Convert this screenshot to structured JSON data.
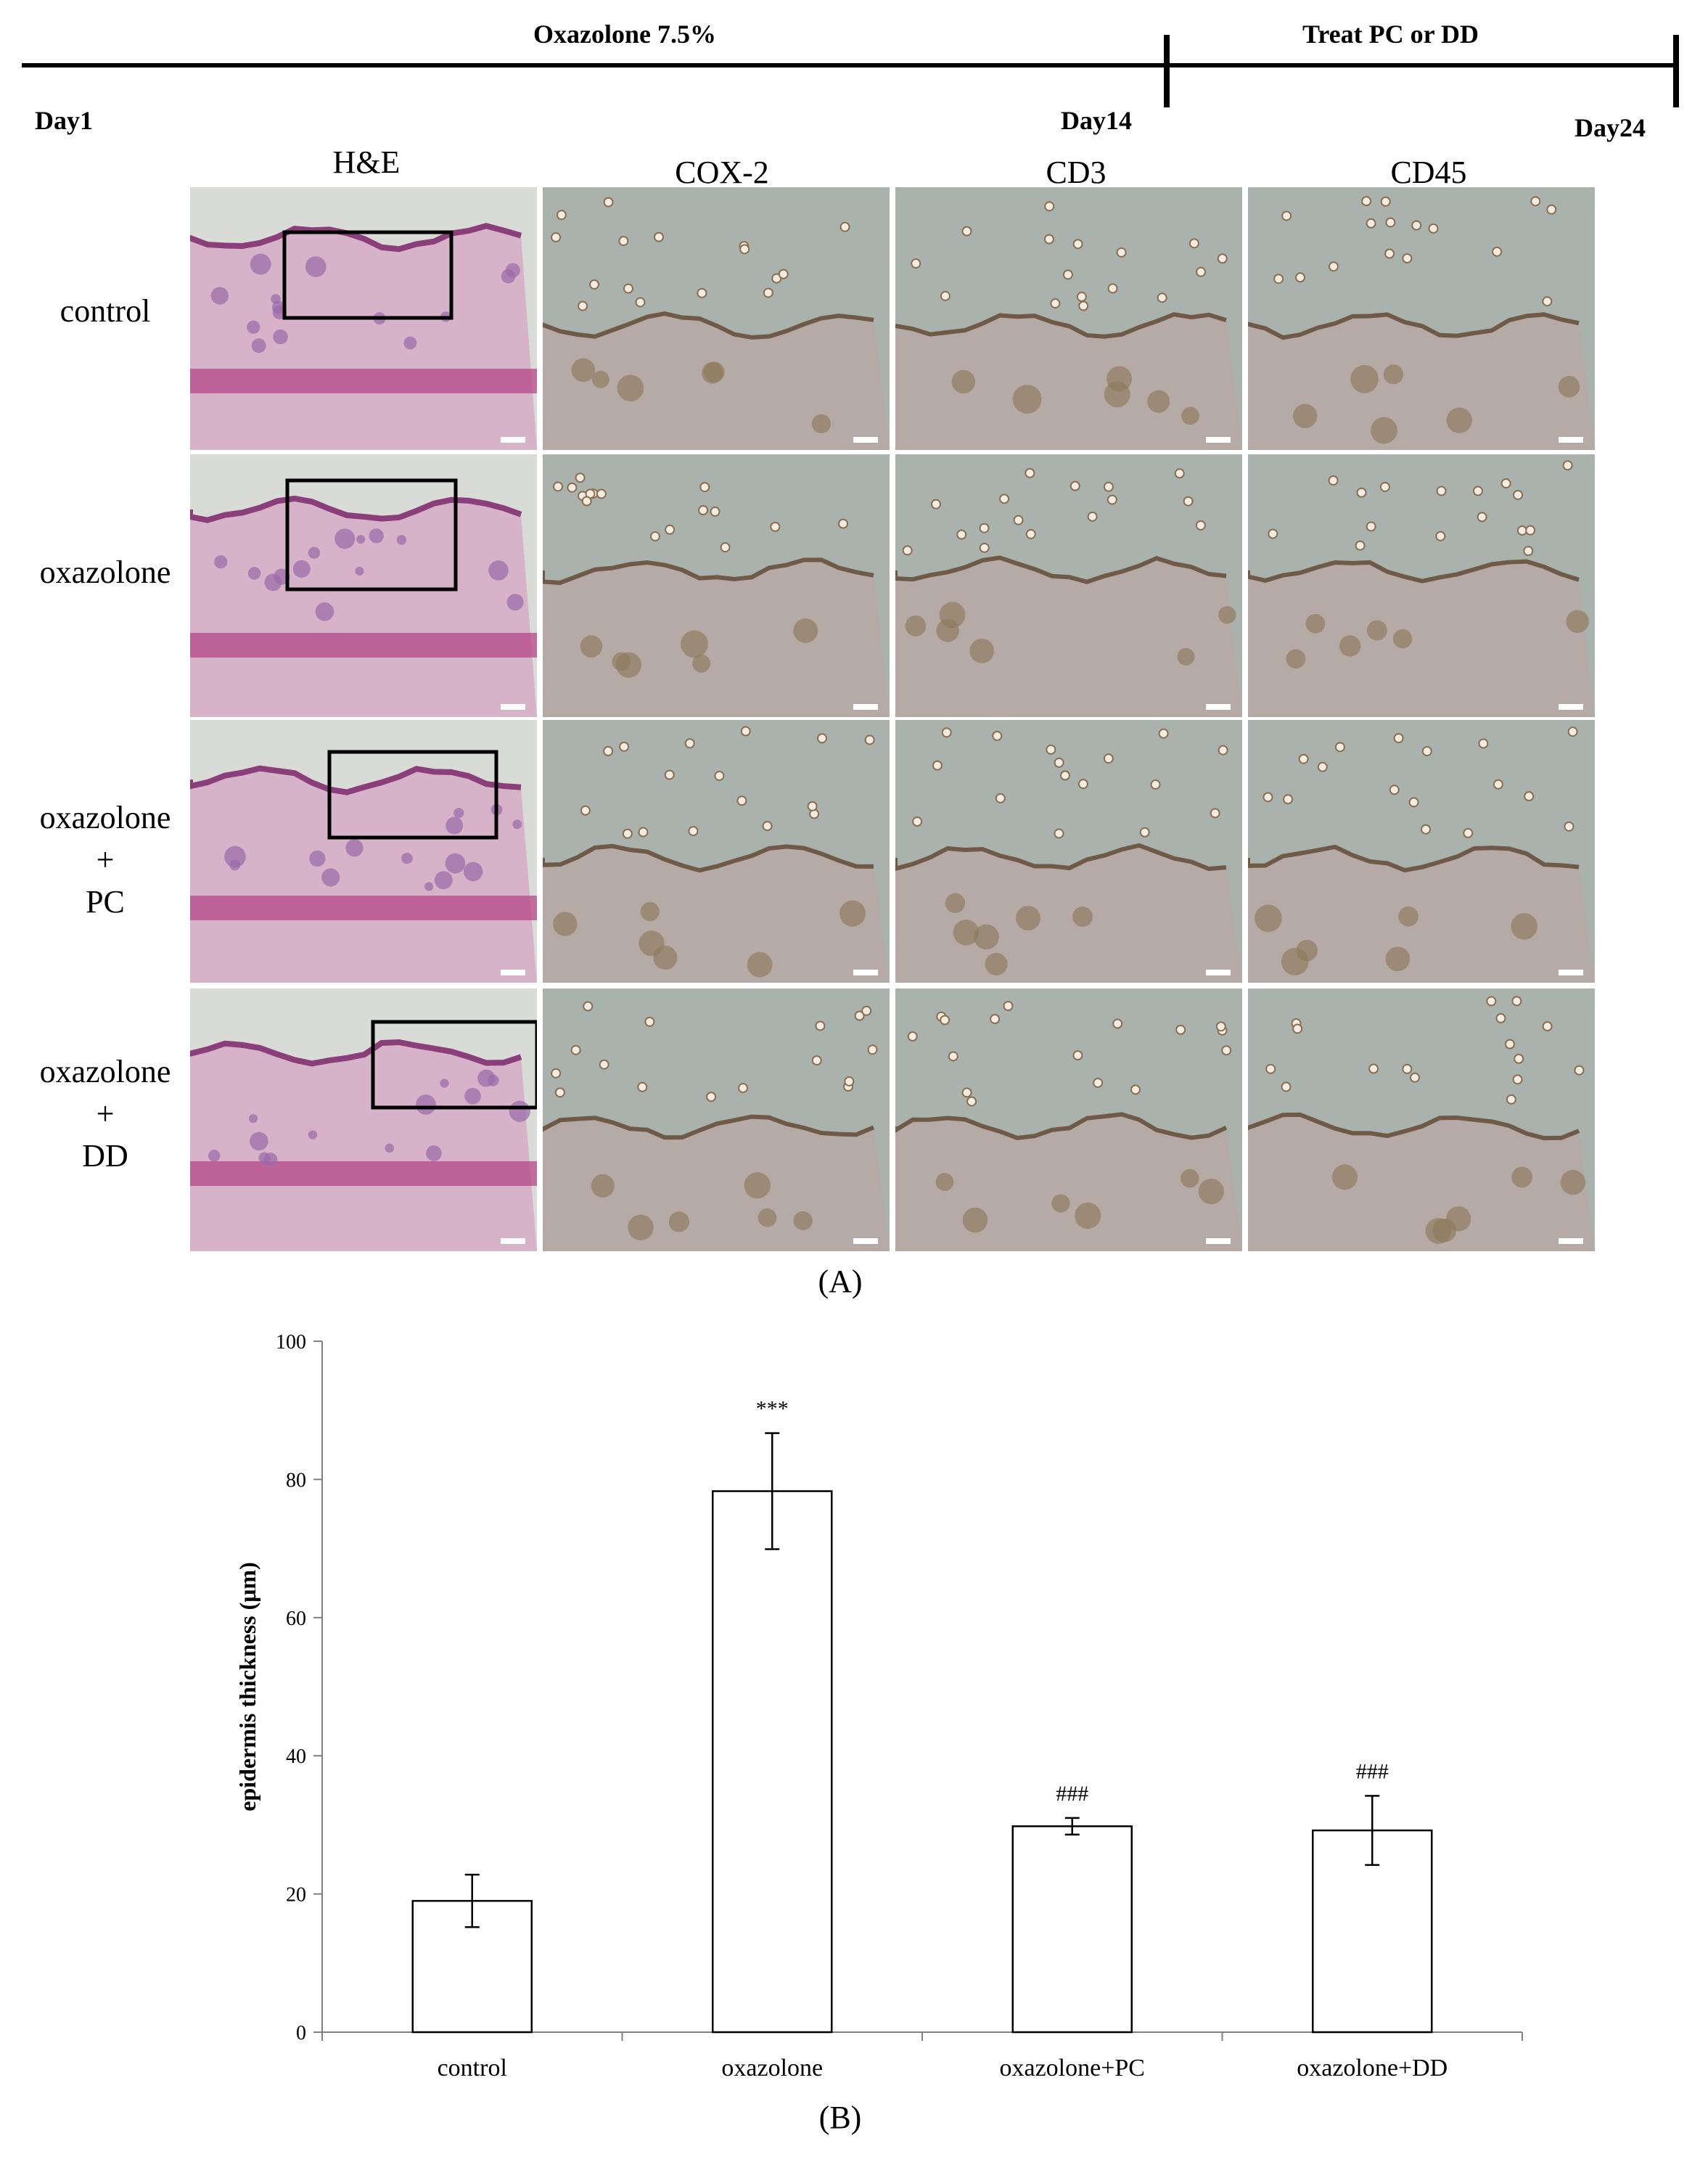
{
  "timeline": {
    "phase1_label": "Oxazolone  7.5%",
    "phase2_label": "Treat PC or DD",
    "day_start": "Day1",
    "day_mid": "Day14",
    "day_end": "Day24"
  },
  "panel_a": {
    "label": "(A)",
    "columns": [
      "H&E",
      "COX-2",
      "CD3",
      "CD45"
    ],
    "rows": [
      {
        "lines": [
          "control"
        ]
      },
      {
        "lines": [
          "oxazolone"
        ]
      },
      {
        "lines": [
          "oxazolone",
          "+",
          "PC"
        ]
      },
      {
        "lines": [
          "oxazolone",
          "+",
          "DD"
        ]
      }
    ]
  },
  "panel_b": {
    "label": "(B)"
  },
  "chart_data": {
    "type": "bar",
    "ylabel": "epidermis thickness (μm)",
    "xlabel": "",
    "categories": [
      "control",
      "oxazolone",
      "oxazolone+PC",
      "oxazolone+DD"
    ],
    "values": [
      19,
      78.3,
      29.8,
      29.2
    ],
    "errors": [
      3.8,
      8.4,
      1.2,
      5.0
    ],
    "annotations": [
      "",
      "***",
      "###",
      "###"
    ],
    "ylim": [
      0,
      100
    ],
    "yticks": [
      0,
      20,
      40,
      60,
      80,
      100
    ],
    "bar_fill": "#ffffff",
    "bar_stroke": "#000000",
    "grid": false
  }
}
